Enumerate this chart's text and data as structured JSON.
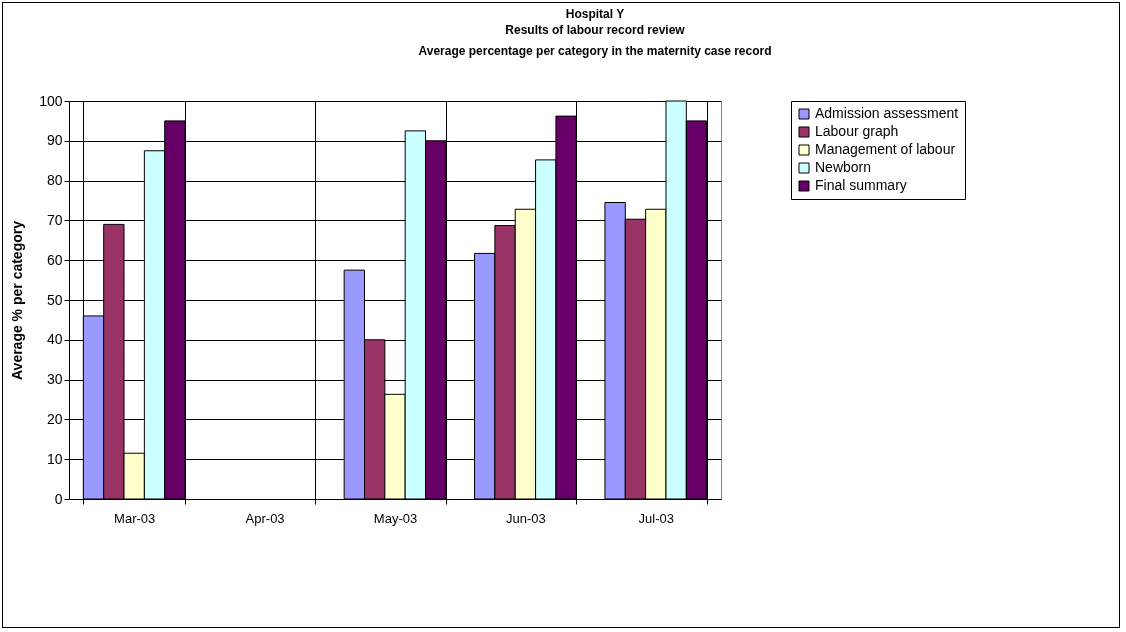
{
  "chart_data": {
    "type": "bar",
    "title": "Hospital Y",
    "subtitle": "Results of labour record review\nAverage percentage per category in the maternity case record",
    "ylabel": "Average % per category",
    "categories": [
      "Mar-03",
      "Apr-03",
      "May-03",
      "Jun-03",
      "Jul-03"
    ],
    "series": [
      {
        "name": "Admission assessment",
        "color": "#9999ff",
        "values": [
          46,
          null,
          57.5,
          61.7,
          74.5
        ]
      },
      {
        "name": "Labour graph",
        "color": "#993366",
        "values": [
          69,
          null,
          40,
          68.7,
          70.3
        ]
      },
      {
        "name": "Management  of labour",
        "color": "#ffffcc",
        "values": [
          11.5,
          null,
          26.3,
          72.8,
          72.8
        ]
      },
      {
        "name": "Newborn",
        "color": "#ccffff",
        "values": [
          87.5,
          null,
          92.5,
          85.2,
          100
        ]
      },
      {
        "name": "Final summary",
        "color": "#660066",
        "values": [
          95,
          null,
          90,
          96.2,
          95
        ]
      }
    ],
    "ylim": [
      0,
      100
    ],
    "yticks": [
      0,
      10,
      20,
      30,
      40,
      50,
      60,
      70,
      80,
      90,
      100
    ],
    "grid": true,
    "legend": "right"
  }
}
